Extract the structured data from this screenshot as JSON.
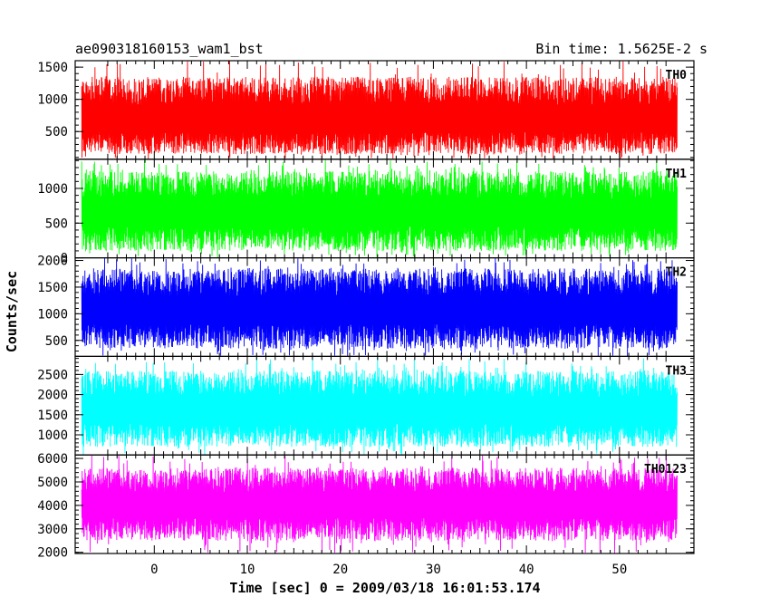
{
  "chart_data": {
    "type": "line",
    "title": "ae090318160153_wam1_bst",
    "title_right": "Bin time: 1.5625E-2 s",
    "xlabel": "Time [sec] 0 = 2009/03/18 16:01:53.174",
    "ylabel": "Counts/sec",
    "xlim": [
      -8.5,
      58
    ],
    "x_ticks": [
      0,
      10,
      20,
      30,
      40,
      50
    ],
    "x_tick_labels": [
      "0",
      "10",
      "20",
      "30",
      "40",
      "50"
    ],
    "data_range_x": [
      -7.8,
      56.2
    ],
    "bin_time_s": 0.015625,
    "grid": false,
    "panels": [
      {
        "name": "TH0",
        "color": "#ff0000",
        "ylim": [
          70,
          1600
        ],
        "yticks": [
          500,
          1000,
          1500
        ],
        "ytick_labels": [
          "500",
          "1000",
          "1500"
        ],
        "mean": 680,
        "noise_low": 150,
        "noise_high": 1350,
        "spike_max": 1600
      },
      {
        "name": "TH1",
        "color": "#00ff00",
        "ylim": [
          0,
          1420
        ],
        "yticks": [
          0,
          500,
          1000
        ],
        "ytick_labels": [
          "0",
          "500",
          "1000"
        ],
        "mean": 650,
        "noise_low": 100,
        "noise_high": 1250,
        "spike_max": 1420
      },
      {
        "name": "TH2",
        "color": "#0000ff",
        "ylim": [
          200,
          2050
        ],
        "yticks": [
          500,
          1000,
          1500,
          2000
        ],
        "ytick_labels": [
          "500",
          "1000",
          "1500",
          "2000"
        ],
        "mean": 1050,
        "noise_low": 350,
        "noise_high": 1850,
        "spike_max": 2050
      },
      {
        "name": "TH3",
        "color": "#00ffff",
        "ylim": [
          500,
          2950
        ],
        "yticks": [
          1000,
          1500,
          2000,
          2500
        ],
        "ytick_labels": [
          "1000",
          "1500",
          "2000",
          "2500"
        ],
        "mean": 1600,
        "noise_low": 700,
        "noise_high": 2600,
        "spike_max": 2950
      },
      {
        "name": "TH0123",
        "color": "#ff00ff",
        "ylim": [
          1950,
          6150
        ],
        "yticks": [
          2000,
          3000,
          4000,
          5000,
          6000
        ],
        "ytick_labels": [
          "2000",
          "3000",
          "4000",
          "5000",
          "6000"
        ],
        "mean": 4000,
        "noise_low": 2500,
        "noise_high": 5600,
        "spike_max": 6150
      }
    ]
  }
}
